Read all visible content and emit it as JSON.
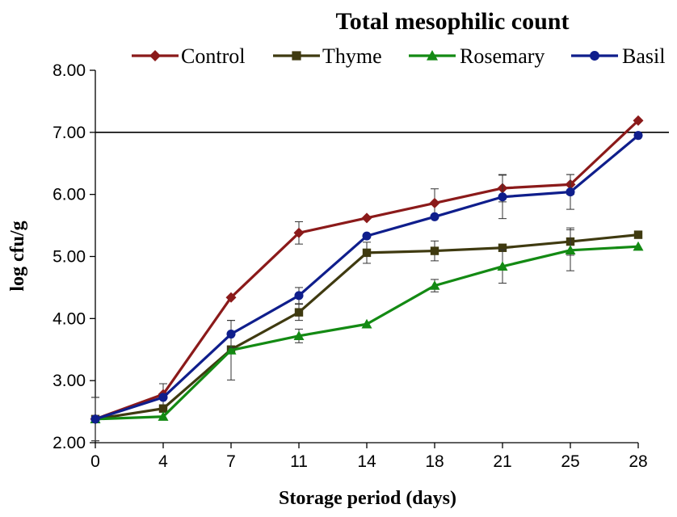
{
  "chart_data": {
    "type": "line",
    "title": "Total mesophilic count",
    "xlabel": "Storage period (days)",
    "ylabel": "log cfu/g",
    "categories": [
      "0",
      "4",
      "7",
      "11",
      "14",
      "18",
      "21",
      "25",
      "28"
    ],
    "y_ticks": [
      "2.00",
      "3.00",
      "4.00",
      "5.00",
      "6.00",
      "7.00",
      "8.00"
    ],
    "ylim": [
      2,
      8
    ],
    "reference_line": 7.0,
    "grid": false,
    "legend_position": "top",
    "series": [
      {
        "name": "Control",
        "color": "#8B1A1A",
        "marker": "diamond",
        "values": [
          2.38,
          2.78,
          4.34,
          5.38,
          5.62,
          5.86,
          6.1,
          6.16,
          7.19
        ],
        "errors": [
          0.35,
          0.17,
          0.0,
          0.18,
          0.0,
          0.23,
          0.22,
          0.16,
          0.0
        ]
      },
      {
        "name": "Thyme",
        "color": "#3F3A10",
        "marker": "square",
        "values": [
          2.38,
          2.55,
          3.5,
          4.1,
          5.06,
          5.09,
          5.14,
          5.24,
          5.35
        ],
        "errors": [
          0.0,
          0.0,
          0.0,
          0.13,
          0.17,
          0.16,
          0.0,
          0.22,
          0.0
        ]
      },
      {
        "name": "Rosemary",
        "color": "#138A13",
        "marker": "triangle",
        "values": [
          2.38,
          2.42,
          3.49,
          3.72,
          3.91,
          4.53,
          4.84,
          5.1,
          5.16
        ],
        "errors": [
          0.0,
          0.0,
          0.48,
          0.11,
          0.0,
          0.1,
          0.27,
          0.33,
          0.0
        ]
      },
      {
        "name": "Basil",
        "color": "#0F1E8C",
        "marker": "circle",
        "values": [
          2.38,
          2.73,
          3.75,
          4.37,
          5.33,
          5.64,
          5.96,
          6.04,
          6.95
        ],
        "errors": [
          0.35,
          0.0,
          0.22,
          0.13,
          0.0,
          0.0,
          0.35,
          0.28,
          0.0
        ]
      }
    ]
  }
}
